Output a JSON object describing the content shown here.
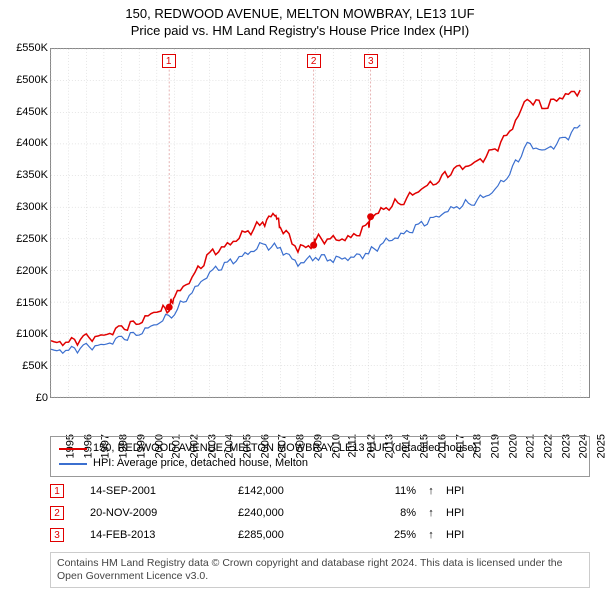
{
  "title": {
    "line1": "150, REDWOOD AVENUE, MELTON MOWBRAY, LE13 1UF",
    "line2": "Price paid vs. HM Land Registry's House Price Index (HPI)",
    "fontsize": 13
  },
  "chart": {
    "type": "line",
    "x_axis": {
      "min": 1995,
      "max": 2025.5,
      "ticks": [
        1995,
        1996,
        1997,
        1998,
        1999,
        2000,
        2001,
        2002,
        2003,
        2004,
        2005,
        2006,
        2007,
        2008,
        2009,
        2010,
        2011,
        2012,
        2013,
        2014,
        2015,
        2016,
        2017,
        2018,
        2019,
        2020,
        2021,
        2022,
        2023,
        2024,
        2025
      ],
      "label_fontsize": 11
    },
    "y_axis": {
      "min": 0,
      "max": 550000,
      "tick_step": 50000,
      "tick_labels": [
        "£0",
        "£50K",
        "£100K",
        "£150K",
        "£200K",
        "£250K",
        "£300K",
        "£350K",
        "£400K",
        "£450K",
        "£500K",
        "£550K"
      ],
      "label_fontsize": 11
    },
    "grid_color": "#cccccc",
    "background_color": "#ffffff",
    "border_color": "#888888",
    "series": [
      {
        "id": "property",
        "label": "150, REDWOOD AVENUE, MELTON MOWBRAY, LE13 1UF (detached house)",
        "color": "#e00000",
        "line_width": 1.5,
        "x": [
          1995,
          1996,
          1997,
          1998,
          1999,
          2000,
          2001,
          2001.7,
          2002,
          2003,
          2004,
          2005,
          2006,
          2007,
          2007.7,
          2008,
          2009,
          2009.89,
          2010,
          2011,
          2012,
          2013,
          2013.12,
          2014,
          2015,
          2016,
          2017,
          2018,
          2019,
          2020,
          2021,
          2022,
          2023,
          2024,
          2025
        ],
        "y": [
          85000,
          88000,
          92000,
          98000,
          108000,
          120000,
          135000,
          142000,
          158000,
          190000,
          225000,
          240000,
          258000,
          275000,
          290000,
          270000,
          235000,
          240000,
          250000,
          248000,
          252000,
          270000,
          285000,
          298000,
          312000,
          328000,
          345000,
          360000,
          370000,
          385000,
          420000,
          470000,
          460000,
          475000,
          485000
        ]
      },
      {
        "id": "hpi",
        "label": "HPI: Average price, detached house, Melton",
        "color": "#3b6fcf",
        "line_width": 1.2,
        "x": [
          1995,
          1996,
          1997,
          1998,
          1999,
          2000,
          2001,
          2002,
          2003,
          2004,
          2005,
          2006,
          2007,
          2008,
          2009,
          2010,
          2011,
          2012,
          2013,
          2014,
          2015,
          2016,
          2017,
          2018,
          2019,
          2020,
          2021,
          2022,
          2023,
          2024,
          2025
        ],
        "y": [
          72000,
          75000,
          78000,
          83000,
          92000,
          102000,
          115000,
          135000,
          165000,
          198000,
          210000,
          225000,
          240000,
          235000,
          210000,
          222000,
          218000,
          220000,
          228000,
          245000,
          258000,
          272000,
          288000,
          300000,
          310000,
          322000,
          355000,
          398000,
          390000,
          405000,
          430000
        ]
      }
    ],
    "sale_markers": [
      {
        "n": "1",
        "year": 2001.7,
        "price": 142000,
        "badge_year": 2001.7,
        "badge_y": 530000
      },
      {
        "n": "2",
        "year": 2009.89,
        "price": 240000,
        "badge_year": 2009.89,
        "badge_y": 530000
      },
      {
        "n": "3",
        "year": 2013.12,
        "price": 285000,
        "badge_year": 2013.12,
        "badge_y": 530000
      }
    ],
    "marker_color": "#e00000",
    "marker_radius": 3.5
  },
  "legend": {
    "border_color": "#999999",
    "fontsize": 11,
    "items": [
      {
        "color": "#e00000",
        "label": "150, REDWOOD AVENUE, MELTON MOWBRAY, LE13 1UF (detached house)"
      },
      {
        "color": "#3b6fcf",
        "label": "HPI: Average price, detached house, Melton"
      }
    ]
  },
  "sales_table": {
    "fontsize": 11,
    "badge_border": "#e00000",
    "rows": [
      {
        "n": "1",
        "date": "14-SEP-2001",
        "price": "£142,000",
        "pct": "11%",
        "arrow": "↑",
        "hpi": "HPI"
      },
      {
        "n": "2",
        "date": "20-NOV-2009",
        "price": "£240,000",
        "pct": "8%",
        "arrow": "↑",
        "hpi": "HPI"
      },
      {
        "n": "3",
        "date": "14-FEB-2013",
        "price": "£285,000",
        "pct": "25%",
        "arrow": "↑",
        "hpi": "HPI"
      }
    ]
  },
  "footer": {
    "text": "Contains HM Land Registry data © Crown copyright and database right 2024. This data is licensed under the Open Government Licence v3.0.",
    "fontsize": 10.5,
    "border_color": "#cccccc",
    "color": "#444444"
  }
}
